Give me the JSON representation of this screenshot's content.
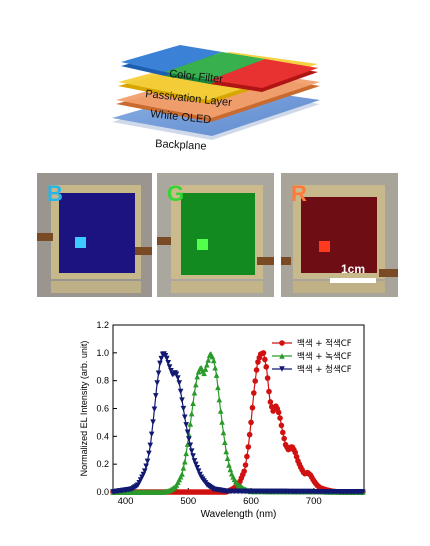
{
  "stack": {
    "layers": [
      "Color Filter",
      "Passivation Layer",
      "White OLED",
      "Backplane"
    ]
  },
  "photos": [
    {
      "letter": "B",
      "letter_color": "#27b4e8",
      "panel_color": "#1a1380",
      "pixel_color": "#3ec9ff",
      "bg": "#9a968f"
    },
    {
      "letter": "G",
      "letter_color": "#33d633",
      "panel_color": "#138a1f",
      "pixel_color": "#52ff4a",
      "bg": "#aaa79f"
    },
    {
      "letter": "R",
      "letter_color": "#ff7a3a",
      "panel_color": "#6e0d14",
      "pixel_color": "#ff3a1e",
      "bg": "#a8a49a"
    }
  ],
  "scalebar": "1cm",
  "chart_data": {
    "type": "line",
    "xlabel": "Wavelength (nm)",
    "ylabel": "Normalized EL Intensity (arb. unit)",
    "xlim": [
      380,
      780
    ],
    "ylim": [
      0,
      1.2
    ],
    "xticks": [
      400,
      500,
      600,
      700
    ],
    "yticks": [
      "0.0",
      "0.2",
      "0.4",
      "0.6",
      "0.8",
      "1.0",
      "1.2"
    ],
    "legend_position": "top-right",
    "series": [
      {
        "name": "백색 + 적색CF",
        "color": "#d11111",
        "marker": "circle",
        "x": [
          380,
          560,
          570,
          580,
          590,
          595,
          600,
          605,
          610,
          615,
          620,
          625,
          630,
          635,
          640,
          645,
          650,
          655,
          660,
          665,
          670,
          675,
          680,
          685,
          690,
          695,
          700,
          705,
          710,
          720,
          730,
          740,
          760,
          780
        ],
        "y": [
          0.0,
          0.0,
          0.02,
          0.05,
          0.16,
          0.3,
          0.5,
          0.74,
          0.92,
          0.99,
          1.0,
          0.88,
          0.66,
          0.58,
          0.62,
          0.56,
          0.44,
          0.34,
          0.3,
          0.33,
          0.29,
          0.22,
          0.17,
          0.13,
          0.14,
          0.12,
          0.08,
          0.05,
          0.03,
          0.015,
          0.005,
          0.0,
          0.0,
          0.0
        ]
      },
      {
        "name": "백색 + 녹색CF",
        "color": "#2a9a2a",
        "marker": "triangle-up",
        "x": [
          380,
          460,
          470,
          480,
          490,
          495,
          500,
          505,
          510,
          515,
          520,
          525,
          530,
          535,
          540,
          545,
          550,
          555,
          560,
          565,
          570,
          575,
          580,
          590,
          600,
          780
        ],
        "y": [
          0.0,
          0.0,
          0.01,
          0.04,
          0.13,
          0.23,
          0.38,
          0.55,
          0.72,
          0.85,
          0.9,
          0.85,
          0.92,
          1.0,
          0.96,
          0.84,
          0.64,
          0.46,
          0.3,
          0.19,
          0.12,
          0.08,
          0.05,
          0.02,
          0.005,
          0.0
        ]
      },
      {
        "name": "백색 + 청색CF",
        "color": "#101870",
        "marker": "triangle-down",
        "x": [
          380,
          410,
          420,
          430,
          435,
          440,
          445,
          450,
          455,
          460,
          465,
          470,
          475,
          480,
          485,
          490,
          495,
          500,
          505,
          510,
          520,
          530,
          540,
          560,
          780
        ],
        "y": [
          0.0,
          0.02,
          0.05,
          0.14,
          0.22,
          0.35,
          0.55,
          0.77,
          0.93,
          1.0,
          0.97,
          0.9,
          0.84,
          0.86,
          0.8,
          0.66,
          0.52,
          0.4,
          0.3,
          0.22,
          0.11,
          0.05,
          0.02,
          0.005,
          0.0
        ]
      }
    ]
  }
}
